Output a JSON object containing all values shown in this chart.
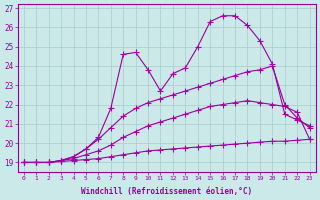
{
  "background_color": "#cce9e9",
  "grid_color": "#aacccc",
  "line_color": "#990099",
  "marker_color": "#aa00aa",
  "marker_style": "+",
  "marker_size": 4,
  "line_width": 0.8,
  "xlabel": "Windchill (Refroidissement éolien,°C)",
  "ylabel_ticks": [
    19,
    20,
    21,
    22,
    23,
    24,
    25,
    26,
    27
  ],
  "xlabel_ticks": [
    0,
    1,
    2,
    3,
    4,
    5,
    6,
    7,
    8,
    9,
    10,
    11,
    12,
    13,
    14,
    15,
    16,
    17,
    18,
    19,
    20,
    21,
    22,
    23
  ],
  "xlim": [
    -0.5,
    23.5
  ],
  "ylim": [
    18.5,
    27.2
  ],
  "series": [
    {
      "x": [
        0,
        1,
        2,
        3,
        4,
        5,
        6,
        7,
        8,
        9,
        10,
        11,
        12,
        13,
        14,
        15,
        16,
        17,
        18,
        19,
        20,
        21,
        22,
        23
      ],
      "y": [
        19.0,
        19.0,
        19.0,
        19.05,
        19.1,
        19.15,
        19.2,
        19.3,
        19.4,
        19.5,
        19.6,
        19.65,
        19.7,
        19.75,
        19.8,
        19.85,
        19.9,
        19.95,
        20.0,
        20.05,
        20.1,
        20.1,
        20.15,
        20.2
      ]
    },
    {
      "x": [
        0,
        1,
        2,
        3,
        4,
        5,
        6,
        7,
        8,
        9,
        10,
        11,
        12,
        13,
        14,
        15,
        16,
        17,
        18,
        19,
        20,
        21,
        22,
        23
      ],
      "y": [
        19.0,
        19.0,
        19.0,
        19.1,
        19.2,
        19.4,
        19.6,
        19.9,
        20.3,
        20.6,
        20.9,
        21.1,
        21.3,
        21.5,
        21.7,
        21.9,
        22.0,
        22.1,
        22.2,
        22.1,
        22.0,
        21.9,
        21.6,
        20.2
      ]
    },
    {
      "x": [
        0,
        1,
        2,
        3,
        4,
        5,
        6,
        7,
        8,
        9,
        10,
        11,
        12,
        13,
        14,
        15,
        16,
        17,
        18,
        19,
        20,
        21,
        22,
        23
      ],
      "y": [
        19.0,
        19.0,
        19.0,
        19.1,
        19.3,
        19.7,
        20.2,
        20.8,
        21.4,
        21.8,
        22.1,
        22.3,
        22.5,
        22.7,
        22.9,
        23.1,
        23.3,
        23.5,
        23.7,
        23.8,
        24.0,
        22.0,
        21.3,
        20.8
      ]
    },
    {
      "x": [
        0,
        1,
        2,
        3,
        4,
        5,
        6,
        7,
        8,
        9,
        10,
        11,
        12,
        13,
        14,
        15,
        16,
        17,
        18,
        19,
        20,
        21,
        22,
        23
      ],
      "y": [
        19.0,
        19.0,
        19.0,
        19.1,
        19.3,
        19.7,
        20.3,
        21.8,
        24.6,
        24.7,
        23.8,
        22.7,
        23.6,
        23.9,
        25.0,
        26.3,
        26.6,
        26.6,
        26.1,
        25.3,
        24.1,
        21.5,
        21.2,
        20.9
      ]
    }
  ]
}
